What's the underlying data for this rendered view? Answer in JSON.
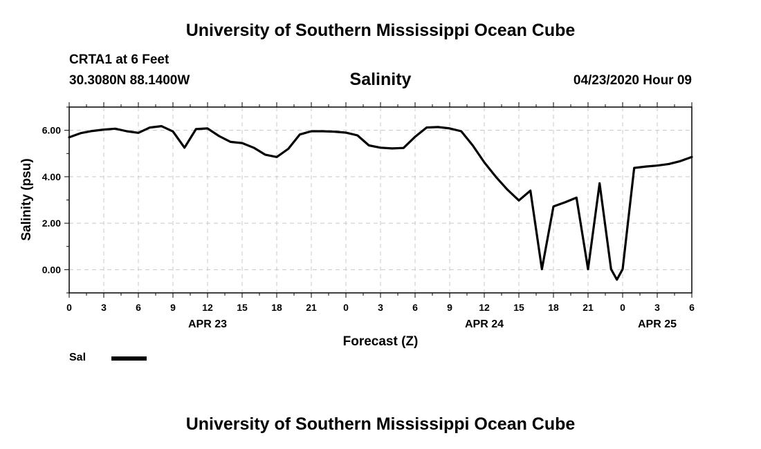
{
  "header": {
    "title": "University of Southern Mississippi Ocean Cube",
    "station": "CRTA1 at 6 Feet",
    "location": "30.3080N 88.1400W",
    "variable": "Salinity",
    "datetime": "04/23/2020 Hour 09"
  },
  "footer": {
    "title": "University of Southern Mississippi Ocean Cube"
  },
  "legend": {
    "label": "Sal"
  },
  "chart_data": {
    "type": "line",
    "xlabel": "Forecast (Z)",
    "ylabel": "Salinity (psu)",
    "xlim": [
      0,
      54
    ],
    "ylim": [
      -1,
      7
    ],
    "grid": true,
    "x_ticks": [
      {
        "x": 0,
        "label": "0"
      },
      {
        "x": 3,
        "label": "3"
      },
      {
        "x": 6,
        "label": "6"
      },
      {
        "x": 9,
        "label": "9"
      },
      {
        "x": 12,
        "label": "12"
      },
      {
        "x": 15,
        "label": "15"
      },
      {
        "x": 18,
        "label": "18"
      },
      {
        "x": 21,
        "label": "21"
      },
      {
        "x": 24,
        "label": "0"
      },
      {
        "x": 27,
        "label": "3"
      },
      {
        "x": 30,
        "label": "6"
      },
      {
        "x": 33,
        "label": "9"
      },
      {
        "x": 36,
        "label": "12"
      },
      {
        "x": 39,
        "label": "15"
      },
      {
        "x": 42,
        "label": "18"
      },
      {
        "x": 45,
        "label": "21"
      },
      {
        "x": 48,
        "label": "0"
      },
      {
        "x": 51,
        "label": "3"
      },
      {
        "x": 54,
        "label": "6"
      }
    ],
    "date_labels": [
      {
        "x": 12,
        "label": "APR 23"
      },
      {
        "x": 36,
        "label": "APR 24"
      },
      {
        "x": 51,
        "label": "APR 25"
      }
    ],
    "y_ticks": [
      {
        "y": 0,
        "label": "0.00"
      },
      {
        "y": 2,
        "label": "2.00"
      },
      {
        "y": 4,
        "label": "4.00"
      },
      {
        "y": 6,
        "label": "6.00"
      }
    ],
    "legend_placement": "bottom-left",
    "series": [
      {
        "name": "Sal",
        "x": [
          0,
          1,
          2,
          3,
          4,
          5,
          6,
          7,
          8,
          9,
          10,
          11,
          12,
          13,
          14,
          15,
          16,
          17,
          18,
          19,
          20,
          21,
          22,
          23,
          24,
          25,
          26,
          27,
          28,
          29,
          30,
          31,
          32,
          33,
          34,
          35,
          36,
          37,
          38,
          39,
          40,
          41,
          42,
          43,
          44,
          45,
          46,
          47,
          47.5,
          48,
          49,
          50,
          51,
          52,
          53,
          54
        ],
        "y": [
          5.7,
          5.88,
          5.97,
          6.03,
          6.07,
          5.96,
          5.89,
          6.12,
          6.18,
          5.95,
          5.25,
          6.05,
          6.08,
          5.75,
          5.5,
          5.45,
          5.25,
          4.95,
          4.85,
          5.2,
          5.82,
          5.96,
          5.96,
          5.94,
          5.9,
          5.78,
          5.35,
          5.25,
          5.22,
          5.24,
          5.72,
          6.12,
          6.14,
          6.08,
          5.96,
          5.35,
          4.62,
          4.0,
          3.45,
          2.98,
          3.4,
          0.02,
          2.72,
          2.9,
          3.1,
          0.02,
          3.72,
          0.02,
          -0.43,
          0.02,
          4.38,
          4.44,
          4.48,
          4.55,
          4.67,
          4.85
        ]
      }
    ]
  }
}
